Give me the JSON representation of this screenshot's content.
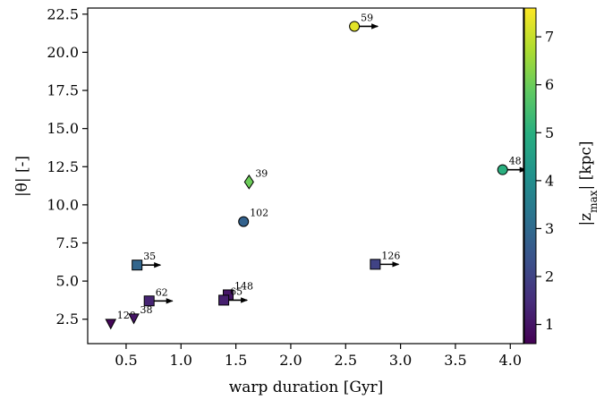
{
  "chart_data": {
    "type": "scatter",
    "xlabel": "warp duration [Gyr]",
    "ylabel": "|θ| [-]",
    "xlim": [
      0.15,
      4.12
    ],
    "ylim": [
      0.9,
      22.9
    ],
    "x_ticks": [
      "0.5",
      "1.0",
      "1.5",
      "2.0",
      "2.5",
      "3.0",
      "3.5",
      "4.0"
    ],
    "y_ticks": [
      "2.5",
      "5.0",
      "7.5",
      "10.0",
      "12.5",
      "15.0",
      "17.5",
      "20.0",
      "22.5"
    ],
    "colorbar": {
      "label": "|z",
      "label_sub": "max",
      "label_end": "| [kpc]",
      "range": [
        0.6,
        7.6
      ],
      "ticks": [
        "1",
        "2",
        "3",
        "4",
        "5",
        "6",
        "7"
      ],
      "colormap": "viridis"
    },
    "points": [
      {
        "label": "59",
        "x": 2.58,
        "y": 21.7,
        "z": 7.3,
        "marker": "circle",
        "lower_limit": true
      },
      {
        "label": "48",
        "x": 3.93,
        "y": 12.3,
        "z": 5.0,
        "marker": "circle",
        "lower_limit": true
      },
      {
        "label": "39",
        "x": 1.62,
        "y": 11.5,
        "z": 6.0,
        "marker": "diamond",
        "lower_limit": false
      },
      {
        "label": "102",
        "x": 1.57,
        "y": 8.9,
        "z": 2.8,
        "marker": "circle",
        "lower_limit": false
      },
      {
        "label": "35",
        "x": 0.6,
        "y": 6.05,
        "z": 2.9,
        "marker": "square",
        "lower_limit": true
      },
      {
        "label": "126",
        "x": 2.77,
        "y": 6.1,
        "z": 2.0,
        "marker": "square",
        "lower_limit": true
      },
      {
        "label": "62",
        "x": 0.71,
        "y": 3.7,
        "z": 1.3,
        "marker": "square",
        "lower_limit": true
      },
      {
        "label": "148",
        "x": 1.43,
        "y": 4.1,
        "z": 1.0,
        "marker": "square",
        "lower_limit": false
      },
      {
        "label": "65",
        "x": 1.39,
        "y": 3.75,
        "z": 1.2,
        "marker": "square",
        "lower_limit": true
      },
      {
        "label": "120",
        "x": 0.36,
        "y": 2.2,
        "z": 0.7,
        "marker": "triangle-down",
        "lower_limit": false
      },
      {
        "label": "38",
        "x": 0.57,
        "y": 2.55,
        "z": 1.0,
        "marker": "triangle-down",
        "lower_limit": false
      }
    ]
  }
}
